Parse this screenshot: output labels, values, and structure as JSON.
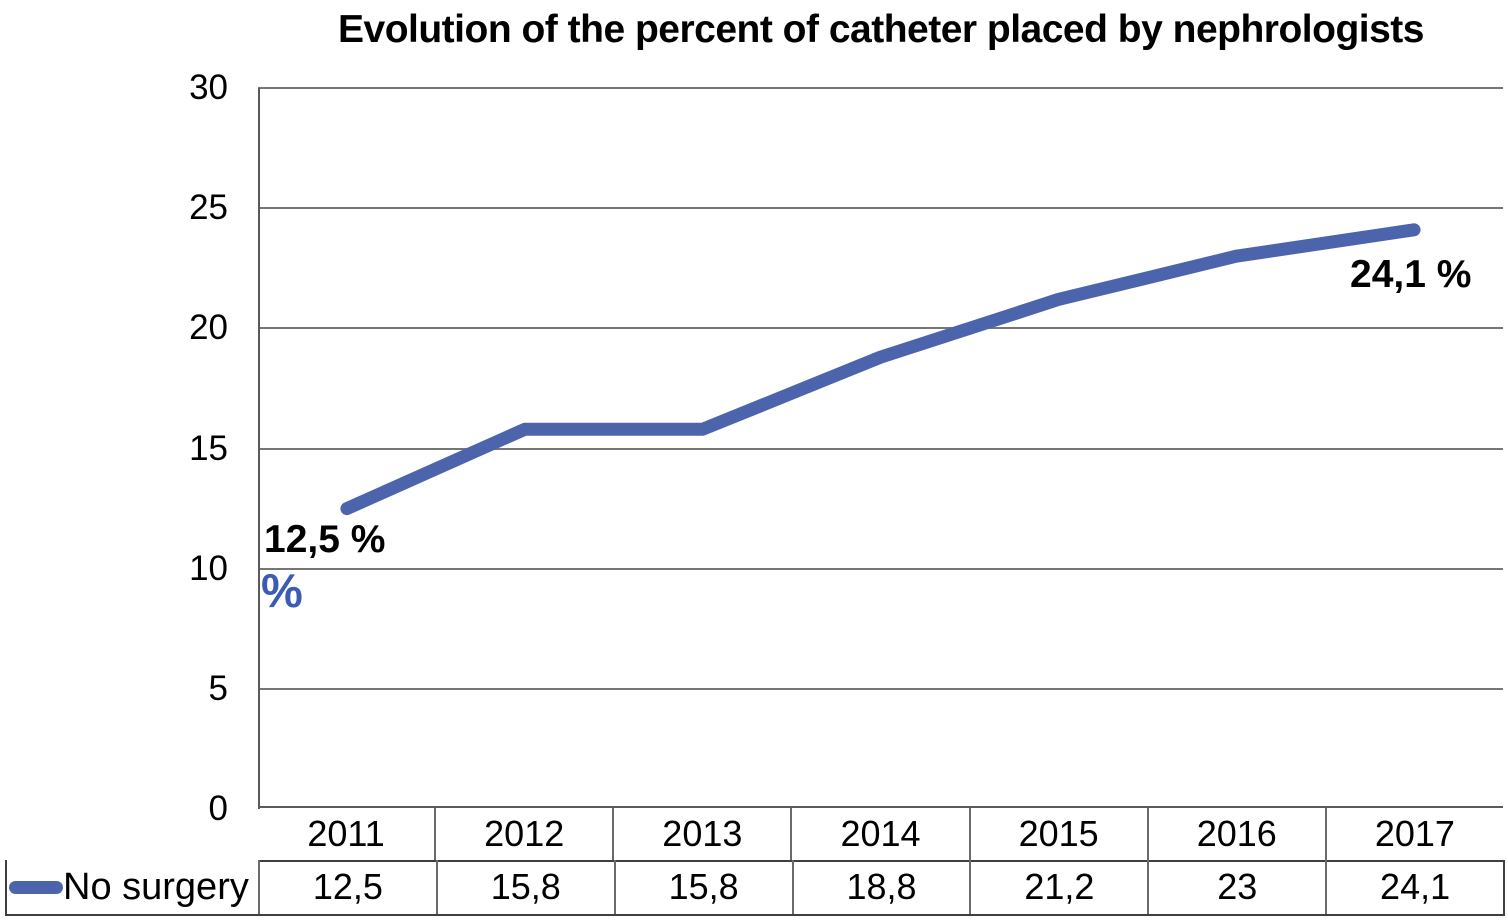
{
  "title": "Evolution of the percent of catheter placed by nephrologists",
  "chart_data": {
    "type": "line",
    "title": "Evolution of the percent of catheter placed by nephrologists",
    "categories": [
      "2011",
      "2012",
      "2013",
      "2014",
      "2015",
      "2016",
      "2017"
    ],
    "series": [
      {
        "name": "No surgery",
        "values": [
          12.5,
          15.8,
          15.8,
          18.8,
          21.2,
          23,
          24.1
        ]
      }
    ],
    "display_values": [
      "12,5",
      "15,8",
      "15,8",
      "18,8",
      "21,2",
      "23",
      "24,1"
    ],
    "xlabel": "",
    "ylabel": "%",
    "ylim": [
      0,
      30
    ],
    "yticks": [
      0,
      5,
      10,
      15,
      20,
      25,
      30
    ],
    "grid": "horizontal",
    "legend_position": "bottom-left-table",
    "data_table_shown": true
  },
  "annotations": {
    "first_point_label": "12,5 %",
    "last_point_label": "24,1 %",
    "axis_unit_label": "%"
  },
  "legend": {
    "label": "No surgery"
  },
  "colors": {
    "line": "#4c64ab",
    "unit_label": "#3c5bb4",
    "grid": "#767676",
    "axis_border": "#5a5a5a",
    "table_outer_border": "#3f3f3f",
    "text": "#000000",
    "background": "#ffffff"
  }
}
